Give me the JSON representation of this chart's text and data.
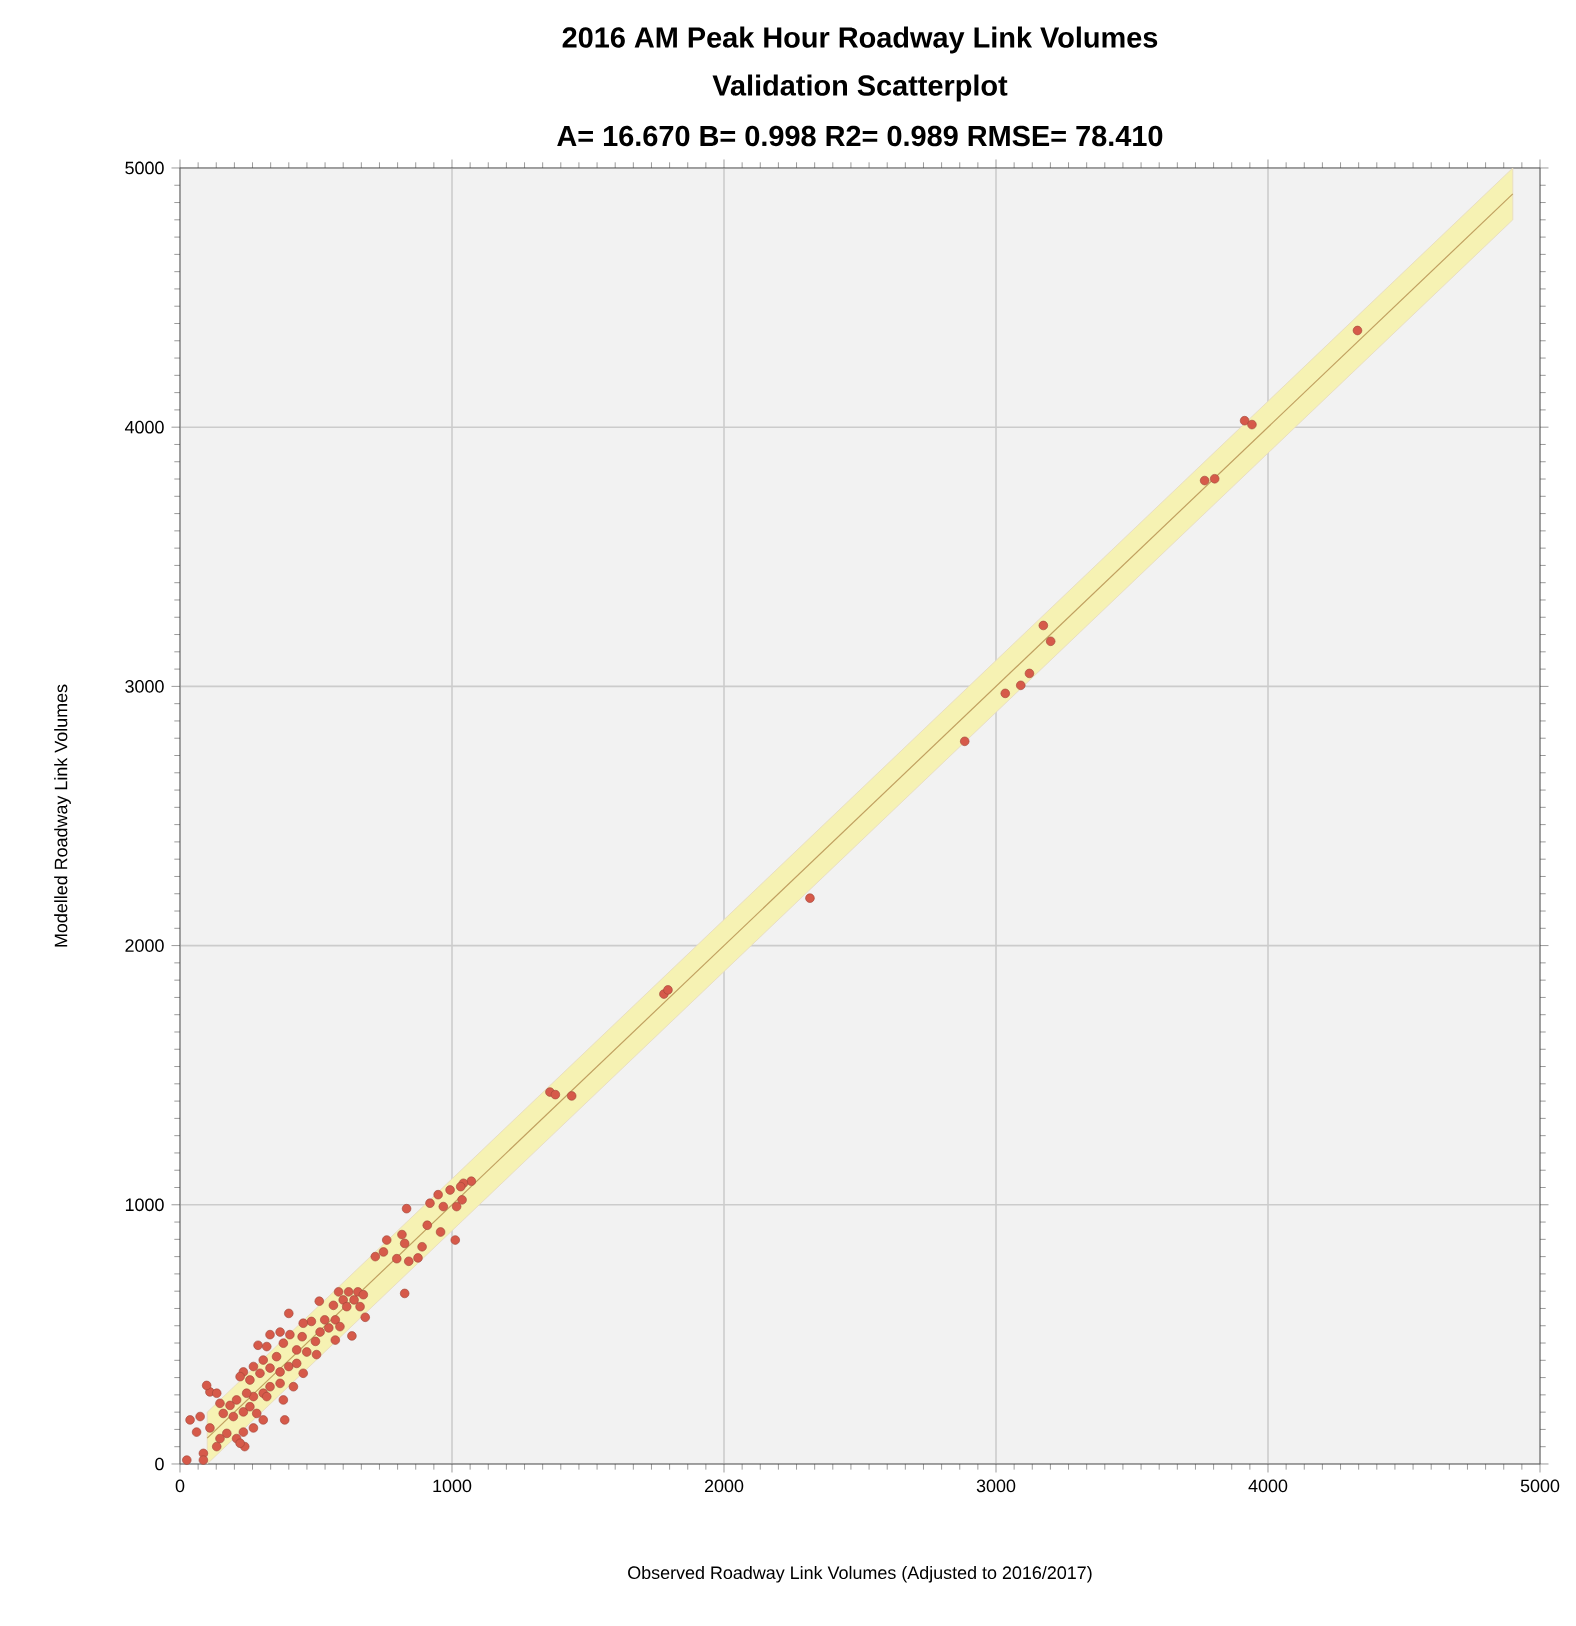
{
  "chart_data": {
    "type": "scatter",
    "title": "2016 AM Peak Hour Roadway Link Volumes",
    "subtitle": "Validation Scatterplot",
    "annotations": [
      "A= 16.670   B= 0.998   R2= 0.989   RMSE= 78.410"
    ],
    "xlabel": "Observed Roadway Link Volumes (Adjusted to 2016/2017)",
    "ylabel": "Modelled Roadway Link Volumes",
    "xlim": [
      0,
      5000
    ],
    "ylim": [
      0,
      5000
    ],
    "xticks": [
      0,
      1000,
      2000,
      3000,
      4000,
      5000
    ],
    "yticks": [
      0,
      1000,
      2000,
      3000,
      4000,
      5000
    ],
    "grid": true,
    "series": [
      {
        "type": "line",
        "color": "#c0a060",
        "marker": "none",
        "x": [
          100,
          4900
        ],
        "values": [
          100,
          4900
        ],
        "lower": [
          0,
          4800
        ],
        "upper": [
          200,
          5000
        ]
      },
      {
        "color": "#d65a4a",
        "marker": "circle",
        "x": [
          4329,
          3914,
          3941,
          3767,
          3804,
          3174,
          3201,
          3123,
          3091,
          3034,
          2885,
          2316,
          1779,
          1794,
          1360,
          1380,
          1440,
          1071,
          1042,
          1032,
          993,
          949,
          919,
          968,
          1037,
          1017,
          833,
          909,
          958,
          1012,
          816,
          760,
          826,
          890,
          718,
          748,
          797,
          841,
          875,
          826,
          583,
          620,
          654,
          674,
          640,
          600,
          662,
          681,
          512,
          564,
          613,
          571,
          532,
          483,
          453,
          400,
          588,
          547,
          515,
          632,
          571,
          498,
          449,
          404,
          368,
          331,
          287,
          319,
          380,
          429,
          466,
          502,
          355,
          306,
          270,
          233,
          221,
          257,
          294,
          331,
          368,
          400,
          429,
          453,
          417,
          368,
          331,
          306,
          270,
          245,
          208,
          184,
          147,
          110,
          98,
          135,
          159,
          196,
          233,
          257,
          282,
          319,
          380,
          385,
          306,
          270,
          233,
          208,
          238,
          221,
          172,
          147,
          110,
          74,
          61,
          135,
          86,
          25,
          86,
          37
        ],
        "values": [
          4373,
          4025,
          4010,
          3794,
          3801,
          3235,
          3174,
          3050,
          3004,
          2973,
          2788,
          2183,
          1813,
          1829,
          1435,
          1425,
          1420,
          1091,
          1083,
          1070,
          1057,
          1039,
          1006,
          993,
          1019,
          993,
          985,
          921,
          895,
          864,
          885,
          864,
          851,
          838,
          800,
          818,
          792,
          782,
          795,
          658,
          664,
          664,
          664,
          653,
          633,
          633,
          607,
          566,
          628,
          612,
          607,
          556,
          556,
          550,
          543,
          581,
          530,
          525,
          509,
          494,
          478,
          473,
          491,
          499,
          509,
          499,
          458,
          453,
          466,
          440,
          432,
          422,
          414,
          401,
          376,
          355,
          337,
          324,
          350,
          370,
          355,
          376,
          388,
          350,
          298,
          311,
          298,
          273,
          260,
          273,
          247,
          226,
          234,
          278,
          303,
          273,
          195,
          183,
          201,
          221,
          195,
          260,
          247,
          170,
          170,
          139,
          123,
          98,
          67,
          80,
          118,
          98,
          139,
          183,
          123,
          67,
          41,
          15,
          15,
          170
        ]
      }
    ]
  }
}
